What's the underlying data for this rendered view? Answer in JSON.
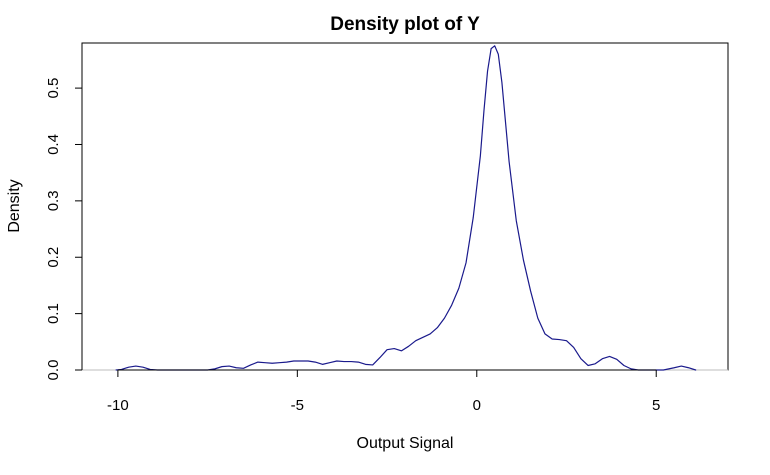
{
  "chart_data": {
    "type": "line",
    "title": "Density plot of Y",
    "xlabel": "Output Signal",
    "ylabel": "Density",
    "xlim": [
      -11,
      7
    ],
    "ylim": [
      0,
      0.58
    ],
    "x_ticks": [
      -10,
      -5,
      0,
      5
    ],
    "x_tick_labels": [
      "-10",
      "-5",
      "0",
      "5"
    ],
    "y_ticks": [
      0.0,
      0.1,
      0.2,
      0.3,
      0.4,
      0.5
    ],
    "y_tick_labels": [
      "0.0",
      "0.1",
      "0.2",
      "0.3",
      "0.4",
      "0.5"
    ],
    "grid": false,
    "legend": false,
    "baseline": 0,
    "colors": {
      "line": "#1a1a8c",
      "baseline": "#bdbdbd",
      "frame": "#000000"
    },
    "series": [
      {
        "x": [
          -10.05,
          -9.9,
          -9.7,
          -9.5,
          -9.3,
          -9.1,
          -8.9,
          -8.5,
          -8.0,
          -7.5,
          -7.3,
          -7.1,
          -6.9,
          -6.7,
          -6.5,
          -6.3,
          -6.1,
          -5.9,
          -5.7,
          -5.5,
          -5.3,
          -5.1,
          -4.9,
          -4.7,
          -4.5,
          -4.3,
          -4.1,
          -3.9,
          -3.7,
          -3.5,
          -3.3,
          -3.1,
          -2.9,
          -2.7,
          -2.5,
          -2.3,
          -2.1,
          -1.9,
          -1.7,
          -1.5,
          -1.3,
          -1.1,
          -0.9,
          -0.7,
          -0.5,
          -0.3,
          -0.1,
          0.1,
          0.2,
          0.3,
          0.4,
          0.5,
          0.6,
          0.7,
          0.8,
          0.9,
          1.1,
          1.3,
          1.5,
          1.7,
          1.9,
          2.1,
          2.3,
          2.5,
          2.7,
          2.9,
          3.1,
          3.3,
          3.5,
          3.7,
          3.9,
          4.1,
          4.3,
          4.5,
          4.8,
          5.2,
          5.5,
          5.7,
          5.9,
          6.1
        ],
        "y": [
          0.0,
          0.001,
          0.005,
          0.007,
          0.005,
          0.001,
          0.0,
          0.0,
          0.0,
          0.0,
          0.002,
          0.006,
          0.007,
          0.004,
          0.003,
          0.009,
          0.014,
          0.013,
          0.012,
          0.013,
          0.014,
          0.016,
          0.016,
          0.016,
          0.014,
          0.01,
          0.013,
          0.016,
          0.015,
          0.015,
          0.014,
          0.01,
          0.009,
          0.022,
          0.036,
          0.038,
          0.034,
          0.042,
          0.052,
          0.058,
          0.064,
          0.075,
          0.092,
          0.115,
          0.145,
          0.19,
          0.27,
          0.38,
          0.46,
          0.53,
          0.57,
          0.575,
          0.56,
          0.51,
          0.44,
          0.37,
          0.265,
          0.195,
          0.14,
          0.092,
          0.064,
          0.055,
          0.054,
          0.052,
          0.04,
          0.02,
          0.008,
          0.011,
          0.02,
          0.024,
          0.019,
          0.008,
          0.002,
          0.0,
          0.0,
          0.0,
          0.004,
          0.007,
          0.004,
          0.0
        ]
      }
    ]
  }
}
